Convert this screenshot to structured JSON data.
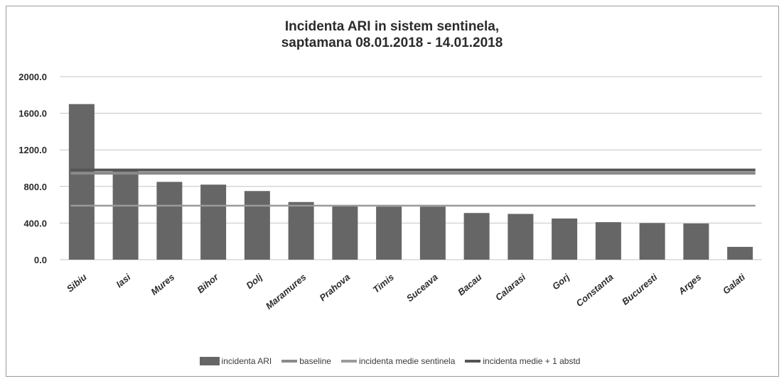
{
  "colors": {
    "bar": "#666666",
    "baseline": "#8a8a8a",
    "incidenta_medie_sentinela": "#9a9a9a",
    "incidenta_medie_plus_1_abstd": "#555555",
    "grid": "#c4c4c4"
  },
  "chart_data": {
    "type": "bar",
    "title_line1": "Incidenta ARI in sistem sentinela,",
    "title_line2": "saptamana 08.01.2018 - 14.01.2018",
    "xlabel": "",
    "ylabel": "",
    "ylim": [
      0,
      2000
    ],
    "yticks": [
      "0.0",
      "400.0",
      "800.0",
      "1200.0",
      "1600.0",
      "2000.0"
    ],
    "ytick_values": [
      0,
      400,
      800,
      1200,
      1600,
      2000
    ],
    "grid": true,
    "legend_position": "bottom",
    "categories": [
      "Sibiu",
      "Iasi",
      "Mures",
      "Bihor",
      "Dolj",
      "Maramures",
      "Prahova",
      "Timis",
      "Suceava",
      "Bacau",
      "Calarasi",
      "Gorj",
      "Constanta",
      "Bucuresti",
      "Arges",
      "Galati"
    ],
    "series": [
      {
        "name": "incidenta ARI",
        "kind": "bar",
        "values": [
          1700,
          980,
          850,
          820,
          750,
          630,
          585,
          580,
          580,
          510,
          500,
          450,
          410,
          400,
          395,
          140
        ]
      },
      {
        "name": "baseline",
        "kind": "line",
        "value": 945
      },
      {
        "name": "incidenta medie sentinela",
        "kind": "line",
        "value": 590
      },
      {
        "name": "incidenta medie + 1 abstd",
        "kind": "line",
        "value": 980
      }
    ]
  }
}
